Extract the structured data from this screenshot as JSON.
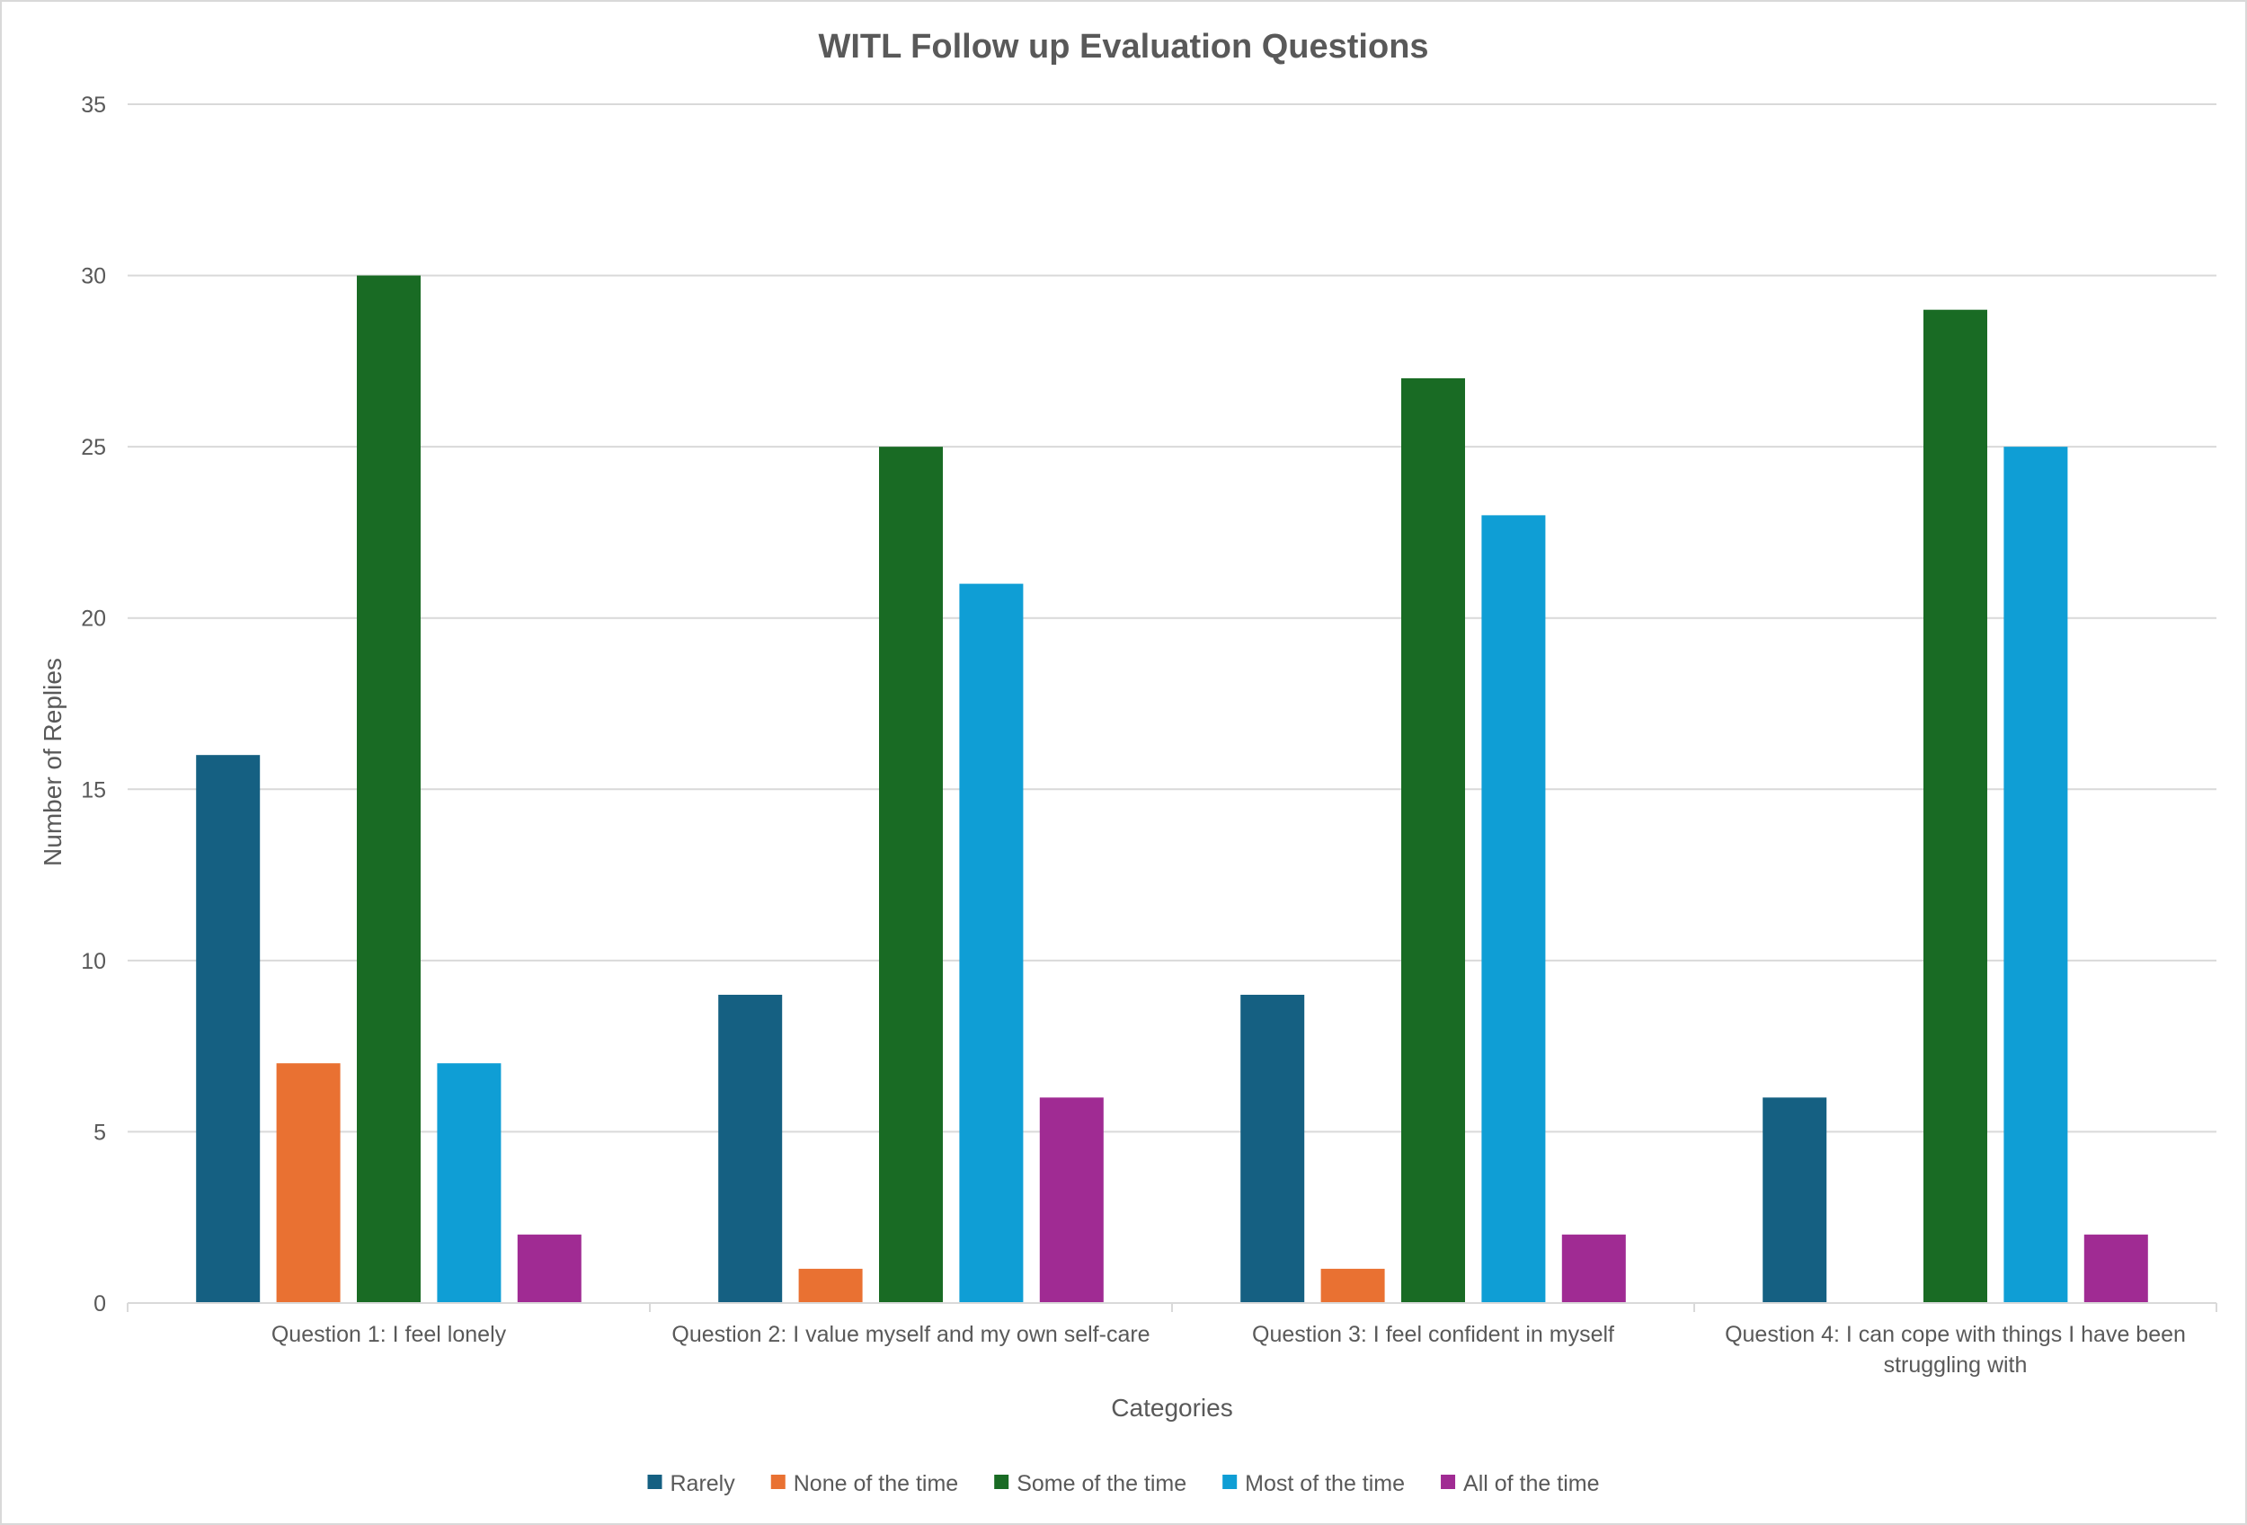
{
  "chart_data": {
    "type": "bar",
    "title": "WITL Follow up Evaluation Questions",
    "xlabel": "Categories",
    "ylabel": "Number of Replies",
    "ylim": [
      0,
      35
    ],
    "yticks": [
      "0",
      "5",
      "10",
      "15",
      "20",
      "25",
      "30",
      "35"
    ],
    "grid": true,
    "legend_position": "bottom",
    "categories": [
      [
        "Question 1: I feel lonely"
      ],
      [
        "Question 2: I value myself and my own self-care"
      ],
      [
        "Question 3: I feel confident in myself"
      ],
      [
        "Question 4: I can cope with things I have been",
        "struggling with"
      ]
    ],
    "series": [
      {
        "name": "Rarely",
        "color": "#156082",
        "values": [
          16,
          9,
          9,
          6
        ]
      },
      {
        "name": "None of the time",
        "color": "#E97132",
        "values": [
          7,
          1,
          1,
          0
        ]
      },
      {
        "name": "Some of the time",
        "color": "#196B24",
        "values": [
          30,
          25,
          27,
          29
        ]
      },
      {
        "name": "Most of the time",
        "color": "#0F9ED5",
        "values": [
          7,
          21,
          23,
          25
        ]
      },
      {
        "name": "All of the time",
        "color": "#A02B93",
        "values": [
          2,
          6,
          2,
          2
        ]
      }
    ]
  }
}
